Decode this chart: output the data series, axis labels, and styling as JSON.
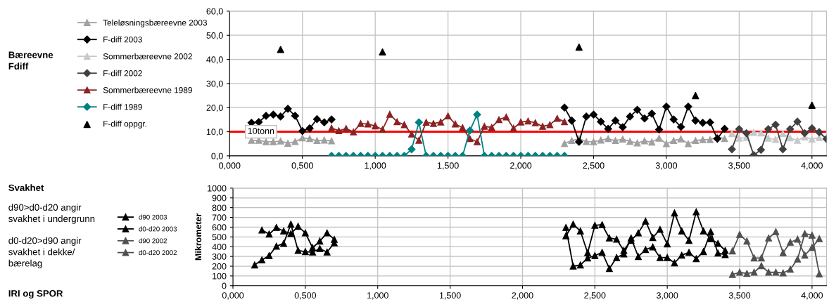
{
  "chart_data": [
    {
      "type": "line",
      "xlim": [
        0,
        4.1
      ],
      "ylim": [
        0,
        60
      ],
      "xticks": [
        {
          "value": 0,
          "label": "0,000"
        },
        {
          "value": 0.5,
          "label": "0,500"
        },
        {
          "value": 1,
          "label": "1,000"
        },
        {
          "value": 1.5,
          "label": "1,500"
        },
        {
          "value": 2,
          "label": "2,000"
        },
        {
          "value": 2.5,
          "label": "2,500"
        },
        {
          "value": 3,
          "label": "3,000"
        },
        {
          "value": 3.5,
          "label": "3,500"
        },
        {
          "value": 4,
          "label": "4,000"
        }
      ],
      "yticks": [
        {
          "value": 0,
          "label": "0,0"
        },
        {
          "value": 10,
          "label": "10,0"
        },
        {
          "value": 20,
          "label": "20,0"
        },
        {
          "value": 30,
          "label": "30,0"
        },
        {
          "value": 40,
          "label": "40,0"
        },
        {
          "value": 50,
          "label": "50,0"
        },
        {
          "value": 60,
          "label": "60,0"
        }
      ],
      "grid": true,
      "legend": "left",
      "annotations": [
        "Bæreevne\nFdiff"
      ],
      "ref_lines": [
        {
          "axis": "y",
          "value": 10,
          "label": "10tonn",
          "color": "#ff0000"
        }
      ],
      "series": [
        {
          "name": "Teleløsningsbæreevne 2003",
          "color": "#a0a0a0",
          "marker": "triangle",
          "x": [
            0.15,
            0.2,
            0.25,
            0.3,
            0.35,
            0.4,
            0.45,
            0.5,
            0.55,
            0.6,
            0.65,
            0.7,
            1.5,
            2.3,
            2.35,
            2.4,
            2.45,
            2.5,
            2.55,
            2.6,
            2.65,
            2.7,
            2.75,
            2.8,
            2.85,
            2.9,
            2.95,
            3.0,
            3.05,
            3.1,
            3.15,
            3.2,
            3.25,
            3.3,
            3.35,
            3.4
          ],
          "values": [
            6.4,
            6.4,
            5.8,
            5.8,
            6.1,
            5.2,
            5.9,
            7.4,
            7.1,
            6.3,
            6.5,
            6.2,
            null,
            5.1,
            6.3,
            7.1,
            5.9,
            5.8,
            6.5,
            7.1,
            6.3,
            6.9,
            6.0,
            5.3,
            6.2,
            5.7,
            7.3,
            5.0,
            6.3,
            7.0,
            5.0,
            6.3,
            6.7,
            6.7,
            7.8,
            7.1
          ]
        },
        {
          "name": "F-diff 2003",
          "color": "#000000",
          "marker": "diamond",
          "x": [
            0.15,
            0.2,
            0.25,
            0.3,
            0.35,
            0.4,
            0.45,
            0.5,
            0.55,
            0.6,
            0.65,
            0.7,
            1.5,
            2.3,
            2.35,
            2.4,
            2.45,
            2.5,
            2.55,
            2.6,
            2.65,
            2.7,
            2.75,
            2.8,
            2.85,
            2.9,
            2.95,
            3.0,
            3.05,
            3.1,
            3.15,
            3.2,
            3.25,
            3.3,
            3.35,
            3.4
          ],
          "values": [
            13.7,
            14.0,
            16.6,
            17.1,
            16.3,
            19.5,
            16.6,
            10.3,
            11.4,
            15.2,
            13.9,
            15.1,
            null,
            20.0,
            14.6,
            5.8,
            16.3,
            17.1,
            14.2,
            11.2,
            14.6,
            11.9,
            16.3,
            19.1,
            15.5,
            17.5,
            10.9,
            20.4,
            15.1,
            12.0,
            20.4,
            14.6,
            13.7,
            13.9,
            7.1,
            11.2
          ]
        },
        {
          "name": "Sommerbæreevne 2002",
          "color": "#c8c8c8",
          "marker": "triangle",
          "x": [
            3.45,
            3.5,
            3.55,
            3.6,
            3.65,
            3.7,
            3.75,
            3.8,
            3.85,
            3.9,
            3.95,
            4.0,
            4.05
          ],
          "values": [
            9.2,
            7.3,
            7.6,
            9.7,
            9.5,
            7.3,
            6.8,
            9.2,
            7.4,
            6.4,
            7.8,
            6.9,
            7.6
          ]
        },
        {
          "name": "F-diff 2002",
          "color": "#404040",
          "marker": "diamond",
          "x": [
            3.45,
            3.5,
            3.55,
            3.6,
            3.65,
            3.7,
            3.75,
            3.8,
            3.85,
            3.9,
            3.95,
            4.0,
            4.05,
            4.1
          ],
          "values": [
            2.7,
            11.1,
            9.4,
            0.3,
            2.5,
            11.1,
            12.9,
            2.7,
            11.1,
            14.2,
            9.4,
            11.4,
            9.8,
            7.0
          ]
        },
        {
          "name": "Sommerbæreevne 1989",
          "color": "#8b2323",
          "marker": "triangle",
          "x": [
            0.7,
            0.75,
            0.8,
            0.85,
            0.9,
            0.95,
            1.0,
            1.05,
            1.1,
            1.15,
            1.2,
            1.25,
            1.3,
            1.35,
            1.4,
            1.45,
            1.5,
            1.55,
            1.6,
            1.65,
            1.7,
            1.75,
            1.8,
            1.85,
            1.9,
            1.95,
            2.0,
            2.05,
            2.1,
            2.15,
            2.2,
            2.25,
            2.3
          ],
          "values": [
            11.5,
            10.4,
            11.3,
            9.9,
            13.4,
            13.2,
            12.4,
            10.9,
            17.2,
            14.1,
            12.9,
            9.0,
            6.4,
            13.9,
            13.4,
            14.0,
            16.5,
            13.2,
            11.7,
            7.1,
            5.8,
            12.2,
            11.8,
            15.0,
            16.1,
            11.4,
            14.0,
            14.4,
            13.7,
            12.2,
            12.9,
            15.5,
            14.1
          ]
        },
        {
          "name": "F-diff 1989",
          "color": "#008080",
          "marker": "diamond",
          "x": [
            0.7,
            0.75,
            0.8,
            0.85,
            0.9,
            0.95,
            1.0,
            1.05,
            1.1,
            1.15,
            1.2,
            1.25,
            1.3,
            1.35,
            1.4,
            1.45,
            1.5,
            1.55,
            1.6,
            1.65,
            1.7,
            1.75,
            1.8,
            1.85,
            1.9,
            1.95,
            2.0,
            2.05,
            2.1,
            2.15,
            2.2,
            2.25,
            2.3
          ],
          "values": [
            0,
            0,
            0,
            0,
            0,
            0,
            0,
            0,
            0,
            0,
            0,
            2.7,
            13.9,
            0,
            0,
            0,
            0,
            0,
            0,
            10.5,
            17.1,
            0,
            0,
            0,
            0,
            0,
            0,
            0,
            0,
            0,
            0,
            0,
            0
          ]
        },
        {
          "name": "F-diff oppgr.",
          "type": "scatter",
          "color": "#000000",
          "marker": "triangle",
          "x": [
            0.35,
            1.05,
            2.4,
            3.2,
            4.0
          ],
          "values": [
            44.1,
            43.1,
            45.1,
            25.0,
            21.0
          ]
        }
      ]
    },
    {
      "type": "line",
      "xlim": [
        0,
        4.1
      ],
      "ylim": [
        0,
        1000
      ],
      "ylabel": "Mikrometer",
      "xticks": [
        {
          "value": 0,
          "label": "0,000"
        },
        {
          "value": 0.5,
          "label": "0,500"
        },
        {
          "value": 1,
          "label": "1,000"
        },
        {
          "value": 1.5,
          "label": "1,500"
        },
        {
          "value": 2,
          "label": "2,000"
        },
        {
          "value": 2.5,
          "label": "2,500"
        },
        {
          "value": 3,
          "label": "3,000"
        },
        {
          "value": 3.5,
          "label": "3,500"
        },
        {
          "value": 4,
          "label": "4,000"
        }
      ],
      "yticks": [
        0,
        100,
        200,
        300,
        400,
        500,
        600,
        700,
        800,
        900,
        1000
      ],
      "grid": true,
      "legend": "left",
      "annotations": [
        "Svakhet",
        "d90>d0-d20 angir\nsvakhet i undergrunn",
        "d0-d20>d90 angir\nsvakhet i dekke/\nbærelag",
        "IRI og SPOR"
      ],
      "series": [
        {
          "name": "d90 2003",
          "color": "#000000",
          "marker": "triangle",
          "x": [
            0.15,
            0.2,
            0.25,
            0.3,
            0.35,
            0.4,
            0.45,
            0.5,
            0.55,
            0.6,
            0.65,
            0.7,
            1.5,
            2.3,
            2.35,
            2.4,
            2.45,
            2.5,
            2.55,
            2.6,
            2.65,
            2.7,
            2.75,
            2.8,
            2.85,
            2.9,
            2.95,
            3.0,
            3.05,
            3.1,
            3.15,
            3.2,
            3.25,
            3.3,
            3.35,
            3.4
          ],
          "values": [
            212,
            264,
            308,
            404,
            433,
            630,
            361,
            349,
            344,
            380,
            344,
            438,
            null,
            596,
            200,
            212,
            284,
            308,
            341,
            175,
            288,
            325,
            488,
            298,
            370,
            397,
            288,
            288,
            233,
            312,
            341,
            276,
            349,
            553,
            334,
            317
          ]
        },
        {
          "name": "d0-d20 2003",
          "color": "#000000",
          "marker": "triangle",
          "x": [
            0.2,
            0.25,
            0.3,
            0.35,
            0.4,
            0.45,
            0.5,
            0.55,
            0.6,
            0.65,
            0.7,
            1.5,
            2.3,
            2.35,
            2.4,
            2.45,
            2.5,
            2.55,
            2.6,
            2.65,
            2.7,
            2.75,
            2.8,
            2.85,
            2.9,
            2.95,
            3.0,
            3.05,
            3.1,
            3.15,
            3.2,
            3.25,
            3.3,
            3.35,
            3.4
          ],
          "values": [
            570,
            529,
            596,
            560,
            534,
            608,
            541,
            389,
            457,
            541,
            474,
            null,
            510,
            630,
            560,
            337,
            618,
            625,
            488,
            476,
            361,
            464,
            541,
            661,
            493,
            577,
            428,
            745,
            560,
            464,
            757,
            560,
            481,
            433,
            361
          ]
        },
        {
          "name": "d90 2002",
          "color": "#505050",
          "marker": "triangle",
          "x": [
            3.45,
            3.5,
            3.55,
            3.6,
            3.65,
            3.7,
            3.75,
            3.8,
            3.85,
            3.9,
            3.95,
            4.0,
            4.05
          ],
          "values": [
            115,
            137,
            125,
            137,
            204,
            137,
            137,
            130,
            168,
            272,
            534,
            517,
            120
          ]
        },
        {
          "name": "d0-d20 2002",
          "color": "#505050",
          "marker": "triangle",
          "x": [
            3.45,
            3.5,
            3.55,
            3.6,
            3.65,
            3.7,
            3.75,
            3.8,
            3.85,
            3.9,
            3.95,
            4.0,
            4.05
          ],
          "values": [
            356,
            524,
            457,
            284,
            284,
            488,
            553,
            337,
            445,
            476,
            313,
            392,
            481
          ]
        }
      ]
    }
  ]
}
